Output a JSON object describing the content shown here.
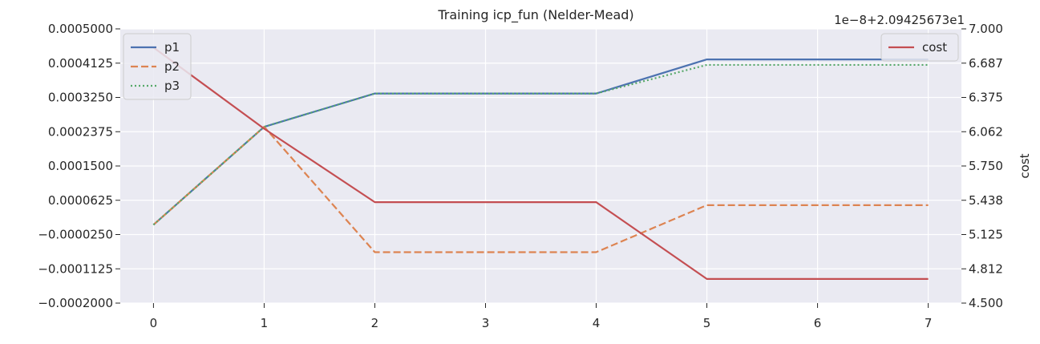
{
  "chart_data": {
    "type": "line",
    "title": "Training icp_fun (Nelder-Mead)",
    "x": [
      0,
      1,
      2,
      3,
      4,
      5,
      6,
      7
    ],
    "x_ticks": [
      0,
      1,
      2,
      3,
      4,
      5,
      6,
      7
    ],
    "x_tick_labels": [
      "0",
      "1",
      "2",
      "3",
      "4",
      "5",
      "6",
      "7"
    ],
    "xlabel": "",
    "xlim": [
      -0.3,
      7.3
    ],
    "left_axis": {
      "ylabel": "",
      "ylim": [
        -0.0002,
        0.0005
      ],
      "ticks": [
        -0.0002,
        -0.0001125,
        -2.5e-05,
        6.25e-05,
        0.00015,
        0.0002375,
        0.000325,
        0.0004125,
        0.0005
      ],
      "tick_labels": [
        "−0.0002000",
        "−0.0001125",
        "−0.0000250",
        "0.0000625",
        "0.0001500",
        "0.0002375",
        "0.0003250",
        "0.0004125",
        "0.0005000"
      ],
      "legend_position": "top-left",
      "series": [
        {
          "name": "p1",
          "color": "#4c72b0",
          "style": "solid",
          "values": [
            0.0,
            0.00025,
            0.000335,
            0.000335,
            0.000335,
            0.000422,
            0.000422,
            0.000422
          ]
        },
        {
          "name": "p2",
          "color": "#dd8452",
          "style": "dashed",
          "values": [
            0.0,
            0.00025,
            -7e-05,
            -7e-05,
            -7e-05,
            5e-05,
            5e-05,
            5e-05
          ]
        },
        {
          "name": "p3",
          "color": "#55a868",
          "style": "dotted",
          "values": [
            0.0,
            0.00025,
            0.000335,
            0.000335,
            0.000335,
            0.000408,
            0.000408,
            0.000408
          ]
        }
      ]
    },
    "right_axis": {
      "ylabel": "cost",
      "offset_text": "1e−8+2.09425673e1",
      "ylim": [
        4.5,
        7.0
      ],
      "ticks": [
        4.5,
        4.8125,
        5.125,
        5.4375,
        5.75,
        6.0625,
        6.375,
        6.6875,
        7.0
      ],
      "tick_labels": [
        "4.500",
        "4.812",
        "5.125",
        "5.438",
        "5.750",
        "6.062",
        "6.375",
        "6.687",
        "7.000"
      ],
      "legend_position": "top-right",
      "series": [
        {
          "name": "cost",
          "color": "#c44e52",
          "style": "solid",
          "values": [
            6.83,
            6.09,
            5.42,
            5.42,
            5.42,
            4.72,
            4.72,
            4.72
          ]
        }
      ]
    },
    "grid": true,
    "background": "#eaeaf2",
    "grid_color": "#ffffff"
  }
}
